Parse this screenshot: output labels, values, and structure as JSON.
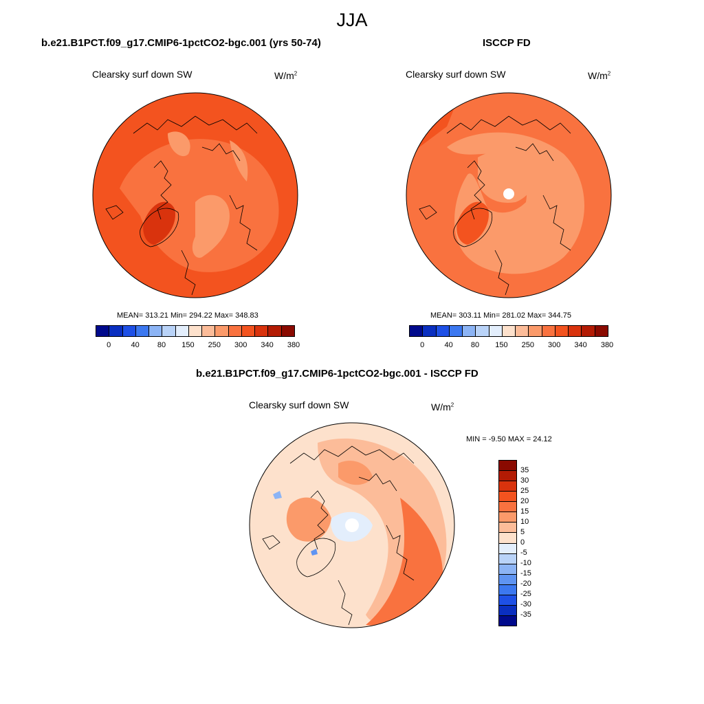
{
  "main_title": "JJA",
  "panels": [
    {
      "title": "b.e21.B1PCT.f09_g17.CMIP6-1pctCO2-bgc.001 (yrs 50-74)",
      "variable": "Clearsky surf down SW",
      "units_base": "W/m",
      "units_exp": "2",
      "stats": "MEAN= 313.21  Min= 294.22  Max= 348.83"
    },
    {
      "title": "ISCCP FD",
      "variable": "Clearsky surf down SW",
      "units_base": "W/m",
      "units_exp": "2",
      "stats": "MEAN= 303.11  Min= 281.02  Max= 344.75"
    },
    {
      "title": "b.e21.B1PCT.f09_g17.CMIP6-1pctCO2-bgc.001 - ISCCP FD",
      "variable": "Clearsky surf down SW",
      "units_base": "W/m",
      "units_exp": "2",
      "stats": "MIN =  -9.50 MAX =  24.12"
    }
  ],
  "abs_colorbar": {
    "labels": [
      "0",
      "40",
      "80",
      "150",
      "250",
      "300",
      "340",
      "380"
    ],
    "colors": [
      "#000a8c",
      "#0a2fc0",
      "#1e50e6",
      "#3c78f0",
      "#8cb4f5",
      "#b9d3f8",
      "#e3eefc",
      "#fde1cc",
      "#fcbc99",
      "#fb9a6a",
      "#f9723f",
      "#f3531f",
      "#d9330d",
      "#b31b04",
      "#8a0a00"
    ]
  },
  "diff_colorbar": {
    "labels": [
      "35",
      "30",
      "25",
      "20",
      "15",
      "10",
      "5",
      "0",
      "-5",
      "-10",
      "-15",
      "-20",
      "-25",
      "-30",
      "-35"
    ],
    "colors": [
      "#8a0a00",
      "#b31b04",
      "#d9330d",
      "#f3531f",
      "#f9723f",
      "#fb9a6a",
      "#fcbc99",
      "#fde1cc",
      "#e3eefc",
      "#b9d3f8",
      "#8cb4f5",
      "#5f94f2",
      "#3c78f0",
      "#1e50e6",
      "#0a2fc0",
      "#000a8c"
    ]
  }
}
